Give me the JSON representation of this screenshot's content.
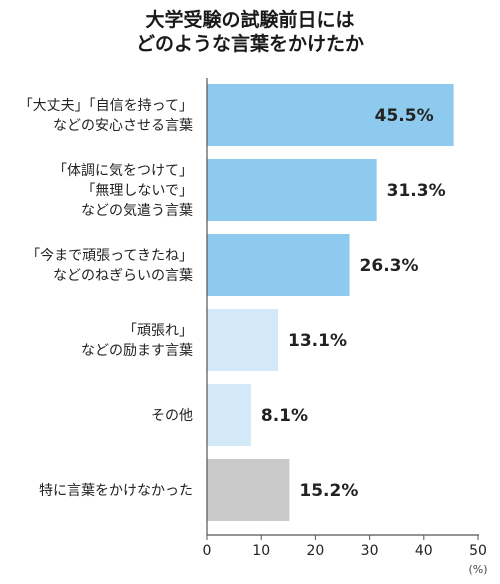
{
  "chart_data": {
    "type": "bar",
    "orientation": "horizontal",
    "title_lines": [
      "大学受験の試験前日には",
      "どのような言葉をかけたか"
    ],
    "categories": [
      [
        "「大丈夫」「自信を持って」",
        "などの安心させる言葉"
      ],
      [
        "「体調に気をつけて」",
        "「無理しないで」",
        "などの気遣う言葉"
      ],
      [
        "「今まで頑張ってきたね」",
        "などのねぎらいの言葉"
      ],
      [
        "「頑張れ」",
        "などの励ます言葉"
      ],
      [
        "その他"
      ],
      [
        "特に言葉をかけなかった"
      ]
    ],
    "values": [
      45.5,
      31.3,
      26.3,
      13.1,
      8.1,
      15.2
    ],
    "value_labels": [
      "45.5%",
      "31.3%",
      "26.3%",
      "13.1%",
      "8.1%",
      "15.2%"
    ],
    "bar_colors": [
      "#8ec9ee",
      "#8ec9ee",
      "#8ec9ee",
      "#d3e9f8",
      "#d3e9f8",
      "#c9c9c9"
    ],
    "label_inside": [
      true,
      false,
      false,
      false,
      false,
      false
    ],
    "xlim": [
      0,
      50
    ],
    "xticks": [
      0,
      10,
      20,
      30,
      40,
      50
    ],
    "x_unit": "(%)",
    "grid": false,
    "legend": "none"
  }
}
